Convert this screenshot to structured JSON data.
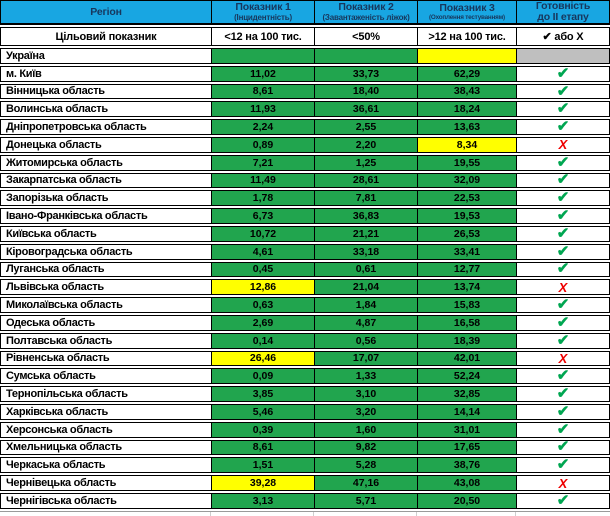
{
  "table": {
    "columns": {
      "region": "Регіон",
      "p1_title": "Показник 1",
      "p1_sub": "(Інцидентність)",
      "p2_title": "Показник 2",
      "p2_sub": "(Завантаженість ліжок)",
      "p3_title": "Показник 3",
      "p3_sub": "(Охоплення тестуванням)",
      "ready_line1": "Готовність",
      "ready_line2": "до II етапу"
    },
    "target_row": {
      "label": "Цільовий показник",
      "p1": "<12 на 100 тис.",
      "p2": "<50%",
      "p3": ">12 на 100 тис.",
      "ready": "✔ або X"
    },
    "glyphs": {
      "check": "✔",
      "cross": "X"
    },
    "colors": {
      "header_bg": "#18A6E2",
      "header_text": "#17375D",
      "green": "#21A54E",
      "yellow": "#FFFF00",
      "gray": "#BFBFBF",
      "check_green": "#00A651",
      "cross_red": "#EE0000"
    },
    "rows": [
      {
        "name": "Україна",
        "v1": "",
        "c1": "green",
        "v2": "",
        "c2": "green",
        "v3": "",
        "c3": "yellow",
        "ready": "none",
        "c4": "gray"
      },
      {
        "name": "м. Київ",
        "v1": "11,02",
        "c1": "green",
        "v2": "33,73",
        "c2": "green",
        "v3": "62,29",
        "c3": "green",
        "ready": "check",
        "c4": "white"
      },
      {
        "name": "Вінницька область",
        "v1": "8,61",
        "c1": "green",
        "v2": "18,40",
        "c2": "green",
        "v3": "38,43",
        "c3": "green",
        "ready": "check",
        "c4": "white"
      },
      {
        "name": "Волинська область",
        "v1": "11,93",
        "c1": "green",
        "v2": "36,61",
        "c2": "green",
        "v3": "18,24",
        "c3": "green",
        "ready": "check",
        "c4": "white"
      },
      {
        "name": "Дніпропетровська область",
        "v1": "2,24",
        "c1": "green",
        "v2": "2,55",
        "c2": "green",
        "v3": "13,63",
        "c3": "green",
        "ready": "check",
        "c4": "white"
      },
      {
        "name": "Донецька область",
        "v1": "0,89",
        "c1": "green",
        "v2": "2,20",
        "c2": "green",
        "v3": "8,34",
        "c3": "yellow",
        "ready": "cross",
        "c4": "white"
      },
      {
        "name": "Житомирська область",
        "v1": "7,21",
        "c1": "green",
        "v2": "1,25",
        "c2": "green",
        "v3": "19,55",
        "c3": "green",
        "ready": "check",
        "c4": "white"
      },
      {
        "name": "Закарпатська область",
        "v1": "11,49",
        "c1": "green",
        "v2": "28,61",
        "c2": "green",
        "v3": "32,09",
        "c3": "green",
        "ready": "check",
        "c4": "white"
      },
      {
        "name": "Запорізька область",
        "v1": "1,78",
        "c1": "green",
        "v2": "7,81",
        "c2": "green",
        "v3": "22,53",
        "c3": "green",
        "ready": "check",
        "c4": "white"
      },
      {
        "name": "Івано-Франківська область",
        "v1": "6,73",
        "c1": "green",
        "v2": "36,83",
        "c2": "green",
        "v3": "19,53",
        "c3": "green",
        "ready": "check",
        "c4": "white"
      },
      {
        "name": "Київська область",
        "v1": "10,72",
        "c1": "green",
        "v2": "21,21",
        "c2": "green",
        "v3": "26,53",
        "c3": "green",
        "ready": "check",
        "c4": "white"
      },
      {
        "name": "Кіровоградська область",
        "v1": "4,61",
        "c1": "green",
        "v2": "33,18",
        "c2": "green",
        "v3": "33,41",
        "c3": "green",
        "ready": "check",
        "c4": "white"
      },
      {
        "name": "Луганська область",
        "v1": "0,45",
        "c1": "green",
        "v2": "0,61",
        "c2": "green",
        "v3": "12,77",
        "c3": "green",
        "ready": "check",
        "c4": "white"
      },
      {
        "name": "Львівська область",
        "v1": "12,86",
        "c1": "yellow",
        "v2": "21,04",
        "c2": "green",
        "v3": "13,74",
        "c3": "green",
        "ready": "cross",
        "c4": "white"
      },
      {
        "name": "Миколаївська область",
        "v1": "0,63",
        "c1": "green",
        "v2": "1,84",
        "c2": "green",
        "v3": "15,83",
        "c3": "green",
        "ready": "check",
        "c4": "white"
      },
      {
        "name": "Одеська область",
        "v1": "2,69",
        "c1": "green",
        "v2": "4,87",
        "c2": "green",
        "v3": "16,58",
        "c3": "green",
        "ready": "check",
        "c4": "white"
      },
      {
        "name": "Полтавська область",
        "v1": "0,14",
        "c1": "green",
        "v2": "0,56",
        "c2": "green",
        "v3": "18,39",
        "c3": "green",
        "ready": "check",
        "c4": "white"
      },
      {
        "name": "Рівненська область",
        "v1": "26,46",
        "c1": "yellow",
        "v2": "17,07",
        "c2": "green",
        "v3": "42,01",
        "c3": "green",
        "ready": "cross",
        "c4": "white"
      },
      {
        "name": "Сумська область",
        "v1": "0,09",
        "c1": "green",
        "v2": "1,33",
        "c2": "green",
        "v3": "52,24",
        "c3": "green",
        "ready": "check",
        "c4": "white"
      },
      {
        "name": "Тернопільська область",
        "v1": "3,85",
        "c1": "green",
        "v2": "3,10",
        "c2": "green",
        "v3": "32,85",
        "c3": "green",
        "ready": "check",
        "c4": "white"
      },
      {
        "name": "Харківська область",
        "v1": "5,46",
        "c1": "green",
        "v2": "3,20",
        "c2": "green",
        "v3": "14,14",
        "c3": "green",
        "ready": "check",
        "c4": "white"
      },
      {
        "name": "Херсонська область",
        "v1": "0,39",
        "c1": "green",
        "v2": "1,60",
        "c2": "green",
        "v3": "31,01",
        "c3": "green",
        "ready": "check",
        "c4": "white"
      },
      {
        "name": "Хмельницька область",
        "v1": "8,61",
        "c1": "green",
        "v2": "9,82",
        "c2": "green",
        "v3": "17,65",
        "c3": "green",
        "ready": "check",
        "c4": "white"
      },
      {
        "name": "Черкаська область",
        "v1": "1,51",
        "c1": "green",
        "v2": "5,28",
        "c2": "green",
        "v3": "38,76",
        "c3": "green",
        "ready": "check",
        "c4": "white"
      },
      {
        "name": "Чернівецька область",
        "v1": "39,28",
        "c1": "yellow",
        "v2": "47,16",
        "c2": "green",
        "v3": "43,08",
        "c3": "green",
        "ready": "cross",
        "c4": "white"
      },
      {
        "name": "Чернігівська область",
        "v1": "3,13",
        "c1": "green",
        "v2": "5,71",
        "c2": "green",
        "v3": "20,50",
        "c3": "green",
        "ready": "check",
        "c4": "white"
      }
    ]
  },
  "chart_data": {
    "type": "table",
    "title": "",
    "columns": [
      "Регіон",
      "Показник 1 (Інцидентність) <12 на 100 тис.",
      "Показник 2 (Завантаженість ліжок) <50%",
      "Показник 3 (Охоплення тестуванням) >12 на 100 тис.",
      "Готовність до II етапу"
    ],
    "rows": [
      [
        "Україна",
        null,
        null,
        null,
        null
      ],
      [
        "м. Київ",
        11.02,
        33.73,
        62.29,
        true
      ],
      [
        "Вінницька область",
        8.61,
        18.4,
        38.43,
        true
      ],
      [
        "Волинська область",
        11.93,
        36.61,
        18.24,
        true
      ],
      [
        "Дніпропетровська область",
        2.24,
        2.55,
        13.63,
        true
      ],
      [
        "Донецька область",
        0.89,
        2.2,
        8.34,
        false
      ],
      [
        "Житомирська область",
        7.21,
        1.25,
        19.55,
        true
      ],
      [
        "Закарпатська область",
        11.49,
        28.61,
        32.09,
        true
      ],
      [
        "Запорізька область",
        1.78,
        7.81,
        22.53,
        true
      ],
      [
        "Івано-Франківська область",
        6.73,
        36.83,
        19.53,
        true
      ],
      [
        "Київська область",
        10.72,
        21.21,
        26.53,
        true
      ],
      [
        "Кіровоградська область",
        4.61,
        33.18,
        33.41,
        true
      ],
      [
        "Луганська область",
        0.45,
        0.61,
        12.77,
        true
      ],
      [
        "Львівська область",
        12.86,
        21.04,
        13.74,
        false
      ],
      [
        "Миколаївська область",
        0.63,
        1.84,
        15.83,
        true
      ],
      [
        "Одеська область",
        2.69,
        4.87,
        16.58,
        true
      ],
      [
        "Полтавська область",
        0.14,
        0.56,
        18.39,
        true
      ],
      [
        "Рівненська область",
        26.46,
        17.07,
        42.01,
        false
      ],
      [
        "Сумська область",
        0.09,
        1.33,
        52.24,
        true
      ],
      [
        "Тернопільська область",
        3.85,
        3.1,
        32.85,
        true
      ],
      [
        "Харківська область",
        5.46,
        3.2,
        14.14,
        true
      ],
      [
        "Херсонська область",
        0.39,
        1.6,
        31.01,
        true
      ],
      [
        "Хмельницька область",
        8.61,
        9.82,
        17.65,
        true
      ],
      [
        "Черкаська область",
        1.51,
        5.28,
        38.76,
        true
      ],
      [
        "Чернівецька область",
        39.28,
        47.16,
        43.08,
        false
      ],
      [
        "Чернігівська область",
        3.13,
        5.71,
        20.5,
        true
      ]
    ],
    "highlighted_yellow_cells": [
      [
        "Україна",
        "Показник 3"
      ],
      [
        "Донецька область",
        "Показник 3"
      ],
      [
        "Львівська область",
        "Показник 1"
      ],
      [
        "Рівненська область",
        "Показник 1"
      ],
      [
        "Чернівецька область",
        "Показник 1"
      ]
    ],
    "legend_position": "none",
    "grid": true
  }
}
